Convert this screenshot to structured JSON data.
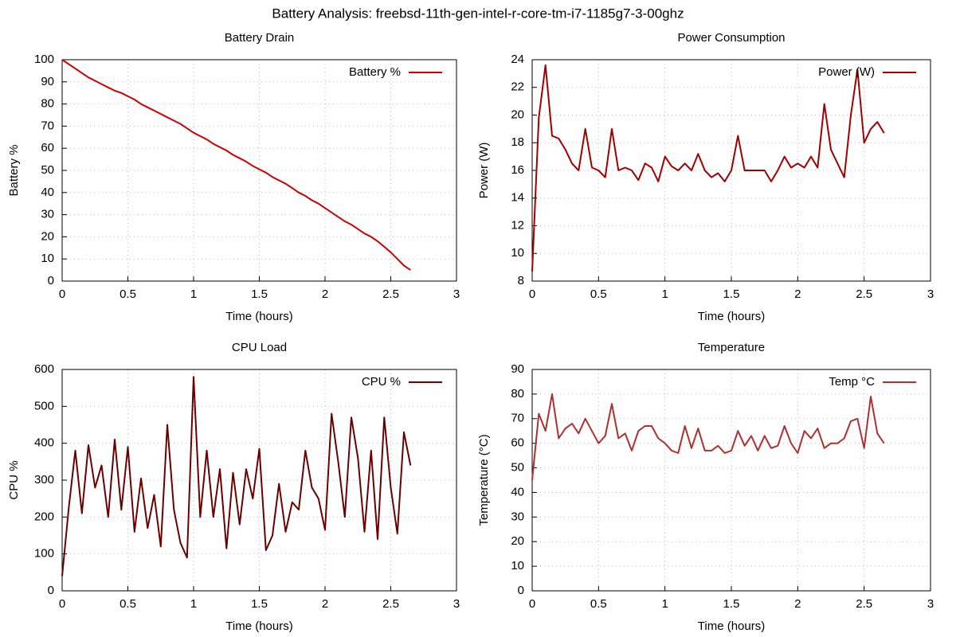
{
  "title": "Battery Analysis: freebsd-11th-gen-intel-r-core-tm-i7-1185g7-3-00ghz",
  "chart_data": [
    {
      "type": "line",
      "title": "Battery Drain",
      "xlabel": "Time (hours)",
      "ylabel": "Battery %",
      "grid": true,
      "legend": "upper right",
      "xlim": [
        0,
        3
      ],
      "xticks": [
        0,
        0.5,
        1,
        1.5,
        2,
        2.5,
        3
      ],
      "ylim": [
        0,
        100
      ],
      "yticks": [
        0,
        10,
        20,
        30,
        40,
        50,
        60,
        70,
        80,
        90,
        100
      ],
      "x": [
        0,
        0.05,
        0.1,
        0.15,
        0.2,
        0.25,
        0.3,
        0.35,
        0.4,
        0.45,
        0.5,
        0.55,
        0.6,
        0.65,
        0.7,
        0.75,
        0.8,
        0.85,
        0.9,
        0.95,
        1,
        1.05,
        1.1,
        1.15,
        1.2,
        1.25,
        1.3,
        1.35,
        1.4,
        1.45,
        1.5,
        1.55,
        1.6,
        1.65,
        1.7,
        1.75,
        1.8,
        1.85,
        1.9,
        1.95,
        2,
        2.05,
        2.1,
        2.15,
        2.2,
        2.25,
        2.3,
        2.35,
        2.4,
        2.45,
        2.5,
        2.55,
        2.6,
        2.65
      ],
      "series": [
        {
          "name": "Battery %",
          "color": "#cc0000",
          "values": [
            100,
            98,
            96,
            94,
            92,
            90.5,
            89,
            87.5,
            86,
            85,
            83.5,
            82,
            80,
            78.5,
            77,
            75.5,
            74,
            72.5,
            71,
            69,
            67,
            65.5,
            64,
            62,
            60.5,
            59,
            57,
            55.5,
            54,
            52,
            50.5,
            49,
            47,
            45.5,
            44,
            42,
            40,
            38.5,
            36.5,
            35,
            33,
            31,
            29,
            27,
            25.5,
            23.5,
            21.5,
            20,
            18,
            15.5,
            13,
            10,
            7,
            5
          ]
        }
      ]
    },
    {
      "type": "line",
      "title": "Power Consumption",
      "xlabel": "Time (hours)",
      "ylabel": "Power (W)",
      "grid": true,
      "legend": "upper right",
      "xlim": [
        0,
        3
      ],
      "xticks": [
        0,
        0.5,
        1,
        1.5,
        2,
        2.5,
        3
      ],
      "ylim": [
        8,
        24
      ],
      "yticks": [
        8,
        10,
        12,
        14,
        16,
        18,
        20,
        22,
        24
      ],
      "x": [
        0,
        0.05,
        0.1,
        0.15,
        0.2,
        0.25,
        0.3,
        0.35,
        0.4,
        0.45,
        0.5,
        0.55,
        0.6,
        0.65,
        0.7,
        0.75,
        0.8,
        0.85,
        0.9,
        0.95,
        1,
        1.05,
        1.1,
        1.15,
        1.2,
        1.25,
        1.3,
        1.35,
        1.4,
        1.45,
        1.5,
        1.55,
        1.6,
        1.65,
        1.7,
        1.75,
        1.8,
        1.85,
        1.9,
        1.95,
        2,
        2.05,
        2.1,
        2.15,
        2.2,
        2.25,
        2.3,
        2.35,
        2.4,
        2.45,
        2.5,
        2.55,
        2.6,
        2.65
      ],
      "series": [
        {
          "name": "Power (W)",
          "color": "#a00000",
          "values": [
            8.7,
            19.8,
            23.6,
            18.5,
            18.3,
            17.5,
            16.5,
            16,
            19,
            16.2,
            16,
            15.5,
            19,
            16,
            16.2,
            16,
            15.3,
            16.5,
            16.2,
            15.2,
            17,
            16.3,
            16,
            16.5,
            16,
            17.2,
            16,
            15.5,
            15.8,
            15.2,
            16,
            18.5,
            16,
            16,
            16,
            16,
            15.2,
            16,
            17,
            16.2,
            16.5,
            16.2,
            17,
            16.2,
            20.8,
            17.5,
            16.5,
            15.5,
            20,
            23.3,
            18,
            19,
            19.5,
            18.7
          ]
        }
      ]
    },
    {
      "type": "line",
      "title": "CPU Load",
      "xlabel": "Time (hours)",
      "ylabel": "CPU %",
      "grid": true,
      "legend": "upper right",
      "xlim": [
        0,
        3
      ],
      "xticks": [
        0,
        0.5,
        1,
        1.5,
        2,
        2.5,
        3
      ],
      "ylim": [
        0,
        600
      ],
      "yticks": [
        0,
        100,
        200,
        300,
        400,
        500,
        600
      ],
      "x": [
        0,
        0.05,
        0.1,
        0.15,
        0.2,
        0.25,
        0.3,
        0.35,
        0.4,
        0.45,
        0.5,
        0.55,
        0.6,
        0.65,
        0.7,
        0.75,
        0.8,
        0.85,
        0.9,
        0.95,
        1,
        1.05,
        1.1,
        1.15,
        1.2,
        1.25,
        1.3,
        1.35,
        1.4,
        1.45,
        1.5,
        1.55,
        1.6,
        1.65,
        1.7,
        1.75,
        1.8,
        1.85,
        1.9,
        1.95,
        2,
        2.05,
        2.1,
        2.15,
        2.2,
        2.25,
        2.3,
        2.35,
        2.4,
        2.45,
        2.5,
        2.55,
        2.6,
        2.65
      ],
      "series": [
        {
          "name": "CPU %",
          "color": "#6b0000",
          "values": [
            40,
            225,
            380,
            210,
            395,
            280,
            340,
            200,
            410,
            220,
            390,
            160,
            305,
            170,
            260,
            120,
            450,
            220,
            130,
            90,
            580,
            200,
            380,
            200,
            330,
            115,
            320,
            180,
            330,
            250,
            385,
            110,
            150,
            290,
            160,
            240,
            220,
            380,
            280,
            250,
            165,
            480,
            350,
            200,
            470,
            360,
            160,
            380,
            140,
            470,
            280,
            155,
            430,
            340
          ]
        }
      ]
    },
    {
      "type": "line",
      "title": "Temperature",
      "xlabel": "Time (hours)",
      "ylabel": "Temperature (°C)",
      "grid": true,
      "legend": "upper right",
      "xlim": [
        0,
        3
      ],
      "xticks": [
        0,
        0.5,
        1,
        1.5,
        2,
        2.5,
        3
      ],
      "ylim": [
        0,
        90
      ],
      "yticks": [
        0,
        10,
        20,
        30,
        40,
        50,
        60,
        70,
        80,
        90
      ],
      "x": [
        0,
        0.05,
        0.1,
        0.15,
        0.2,
        0.25,
        0.3,
        0.35,
        0.4,
        0.45,
        0.5,
        0.55,
        0.6,
        0.65,
        0.7,
        0.75,
        0.8,
        0.85,
        0.9,
        0.95,
        1,
        1.05,
        1.1,
        1.15,
        1.2,
        1.25,
        1.3,
        1.35,
        1.4,
        1.45,
        1.5,
        1.55,
        1.6,
        1.65,
        1.7,
        1.75,
        1.8,
        1.85,
        1.9,
        1.95,
        2,
        2.05,
        2.1,
        2.15,
        2.2,
        2.25,
        2.3,
        2.35,
        2.4,
        2.45,
        2.5,
        2.55,
        2.6,
        2.65
      ],
      "series": [
        {
          "name": "Temp °C",
          "color": "#b03030",
          "values": [
            45,
            72,
            65,
            80,
            62,
            66,
            68,
            64,
            70,
            65,
            60,
            63,
            76,
            62,
            64,
            57,
            65,
            67,
            67,
            62,
            60,
            57,
            56,
            67,
            58,
            66,
            57,
            57,
            59,
            56,
            57,
            65,
            59,
            63,
            57,
            63,
            58,
            59,
            67,
            60,
            56,
            65,
            62,
            66,
            58,
            60,
            60,
            62,
            69,
            70,
            58,
            79,
            64,
            60
          ]
        }
      ]
    }
  ]
}
